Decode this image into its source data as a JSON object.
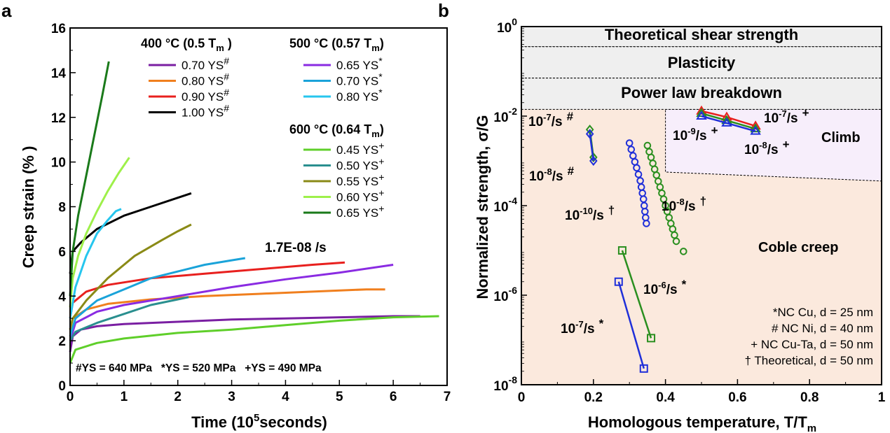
{
  "chart_data": [
    {
      "type": "line",
      "panel_label": "a",
      "xlabel": "Time (10",
      "xlabel_sup": "5",
      "xlabel_tail": "seconds)",
      "ylabel": "Creep strain (% )",
      "xlim": [
        0,
        7
      ],
      "ylim": [
        0,
        16
      ],
      "xticks": [
        0,
        1,
        2,
        3,
        4,
        5,
        6,
        7
      ],
      "yticks": [
        0,
        2,
        4,
        6,
        8,
        10,
        12,
        14,
        16
      ],
      "legend_groups": [
        {
          "title": "400 °C (0.5 T",
          "title_sub": "m",
          "title_tail": " )"
        },
        {
          "title": "500 °C (0.57 T",
          "title_sub": "m",
          "title_tail": ")"
        },
        {
          "title": "600 °C (0.64 T",
          "title_sub": "m",
          "title_tail": ")"
        }
      ],
      "series": [
        {
          "name": "0.70 YS",
          "mark": "#",
          "group": 0,
          "color": "#7a1fa2",
          "points": [
            [
              0,
              1.5
            ],
            [
              0.05,
              2.2
            ],
            [
              0.2,
              2.5
            ],
            [
              0.5,
              2.65
            ],
            [
              1,
              2.75
            ],
            [
              2,
              2.85
            ],
            [
              3,
              2.95
            ],
            [
              4,
              3.0
            ],
            [
              5,
              3.05
            ],
            [
              6,
              3.1
            ],
            [
              6.5,
              3.1
            ]
          ]
        },
        {
          "name": "0.80 YS",
          "mark": "#",
          "group": 0,
          "color": "#f07f1e",
          "points": [
            [
              0,
              2.5
            ],
            [
              0.05,
              3.0
            ],
            [
              0.3,
              3.4
            ],
            [
              0.7,
              3.65
            ],
            [
              1.5,
              3.85
            ],
            [
              2.5,
              4.0
            ],
            [
              3.5,
              4.1
            ],
            [
              4.5,
              4.2
            ],
            [
              5.5,
              4.3
            ],
            [
              5.85,
              4.3
            ]
          ]
        },
        {
          "name": "0.90 YS",
          "mark": "#",
          "group": 0,
          "color": "#e8201e",
          "points": [
            [
              0,
              3.0
            ],
            [
              0.05,
              3.7
            ],
            [
              0.3,
              4.2
            ],
            [
              0.7,
              4.5
            ],
            [
              1.5,
              4.8
            ],
            [
              2.5,
              5.0
            ],
            [
              3.5,
              5.2
            ],
            [
              4.5,
              5.4
            ],
            [
              5.1,
              5.5
            ]
          ]
        },
        {
          "name": "1.00 YS",
          "mark": "#",
          "group": 0,
          "color": "#000000",
          "points": [
            [
              0,
              5.0
            ],
            [
              0.05,
              6.0
            ],
            [
              0.2,
              6.4
            ],
            [
              0.5,
              7.0
            ],
            [
              1.0,
              7.6
            ],
            [
              1.5,
              8.0
            ],
            [
              2.0,
              8.4
            ],
            [
              2.25,
              8.6
            ]
          ]
        },
        {
          "name": "0.65 YS",
          "mark": "*",
          "group": 1,
          "color": "#8a2be2",
          "points": [
            [
              0,
              2.0
            ],
            [
              0.1,
              2.8
            ],
            [
              0.5,
              3.3
            ],
            [
              1,
              3.6
            ],
            [
              2,
              4.0
            ],
            [
              3,
              4.4
            ],
            [
              4,
              4.75
            ],
            [
              5,
              5.05
            ],
            [
              6,
              5.4
            ]
          ]
        },
        {
          "name": "0.70 YS",
          "mark": "*",
          "group": 1,
          "color": "#1aa3d9",
          "points": [
            [
              0,
              2.2
            ],
            [
              0.1,
              3.0
            ],
            [
              0.5,
              3.8
            ],
            [
              1,
              4.3
            ],
            [
              1.5,
              4.8
            ],
            [
              2,
              5.1
            ],
            [
              2.5,
              5.4
            ],
            [
              3.0,
              5.6
            ],
            [
              3.25,
              5.7
            ]
          ]
        },
        {
          "name": "0.80 YS",
          "mark": "*",
          "group": 1,
          "color": "#26c6ee",
          "points": [
            [
              0,
              3.0
            ],
            [
              0.1,
              4.4
            ],
            [
              0.3,
              5.8
            ],
            [
              0.5,
              6.8
            ],
            [
              0.7,
              7.4
            ],
            [
              0.85,
              7.8
            ],
            [
              0.95,
              7.9
            ]
          ]
        },
        {
          "name": "0.45 YS",
          "mark": "+",
          "group": 2,
          "color": "#5fcf2a",
          "points": [
            [
              0,
              1.0
            ],
            [
              0.1,
              1.6
            ],
            [
              0.5,
              1.9
            ],
            [
              1,
              2.1
            ],
            [
              2,
              2.35
            ],
            [
              3,
              2.5
            ],
            [
              4,
              2.7
            ],
            [
              5,
              2.9
            ],
            [
              6,
              3.05
            ],
            [
              6.85,
              3.1
            ]
          ]
        },
        {
          "name": "0.50 YS",
          "mark": "+",
          "group": 2,
          "color": "#2a8f8f",
          "points": [
            [
              0,
              2.0
            ],
            [
              0.1,
              2.4
            ],
            [
              0.5,
              2.8
            ],
            [
              1,
              3.2
            ],
            [
              1.5,
              3.6
            ],
            [
              2,
              3.85
            ],
            [
              2.2,
              3.95
            ]
          ]
        },
        {
          "name": "0.55 YS",
          "mark": "+",
          "group": 2,
          "color": "#8a8a16",
          "points": [
            [
              0,
              2.5
            ],
            [
              0.05,
              3.0
            ],
            [
              0.3,
              3.8
            ],
            [
              0.7,
              4.8
            ],
            [
              1.2,
              5.8
            ],
            [
              1.7,
              6.5
            ],
            [
              2.0,
              6.9
            ],
            [
              2.25,
              7.2
            ]
          ]
        },
        {
          "name": "0.60 YS",
          "mark": "+",
          "group": 2,
          "color": "#9ef04a",
          "points": [
            [
              0,
              3.5
            ],
            [
              0.05,
              4.8
            ],
            [
              0.15,
              5.8
            ],
            [
              0.3,
              6.8
            ],
            [
              0.5,
              7.8
            ],
            [
              0.7,
              8.7
            ],
            [
              0.9,
              9.5
            ],
            [
              1.1,
              10.2
            ]
          ]
        },
        {
          "name": "0.65 YS",
          "mark": "+",
          "group": 2,
          "color": "#1a7a1a",
          "points": [
            [
              0,
              4.0
            ],
            [
              0.05,
              6.0
            ],
            [
              0.15,
              7.6
            ],
            [
              0.3,
              9.4
            ],
            [
              0.45,
              11.2
            ],
            [
              0.6,
              13.0
            ],
            [
              0.72,
              14.5
            ]
          ]
        }
      ],
      "annotation": {
        "text": "1.7E-08 /s",
        "color": "#e8201e",
        "x": 3.7,
        "y": 6.0
      },
      "footnote": "#YS = 640 MPa   *YS = 520 MPa   +YS = 490 MPa"
    },
    {
      "type": "scatter",
      "panel_label": "b",
      "xlabel": "Homologous temperature, T/T",
      "xlabel_sub": "m",
      "ylabel": "Normalized strength, σ/G",
      "xlim": [
        0,
        1
      ],
      "ylim_log10": [
        -8,
        0
      ],
      "log_y": true,
      "xticks": [
        "0",
        "0.2",
        "0.4",
        "0.6",
        "0.8",
        "1"
      ],
      "yticks": [
        -8,
        -6,
        -4,
        -2,
        0
      ],
      "regions": [
        {
          "text": "Theoretical shear strength",
          "color": "#efefef"
        },
        {
          "text": "Plasticity",
          "color": "#efefef"
        },
        {
          "text": "Power law breakdown",
          "color": "#efefef"
        },
        {
          "text": "Climb",
          "color": "#f7eefb"
        },
        {
          "text": "Coble creep",
          "color": "#fbe9dd"
        }
      ],
      "datasets": [
        {
          "label": "10-7/s",
          "mark": "*",
          "color": "#1f2fd9",
          "marker": "square",
          "line": true,
          "points": [
            [
              0.27,
              2e-06
            ],
            [
              0.34,
              2.3e-08
            ]
          ]
        },
        {
          "label": "10-6/s",
          "mark": "*",
          "color": "#2a8f1f",
          "marker": "square",
          "line": true,
          "points": [
            [
              0.28,
              1e-05
            ],
            [
              0.36,
              1.1e-07
            ]
          ]
        },
        {
          "label": "10-7/s",
          "mark": "#",
          "color": "#2a8f1f",
          "marker": "diamond",
          "line": true,
          "points": [
            [
              0.19,
              0.005
            ],
            [
              0.2,
              0.0012
            ]
          ]
        },
        {
          "label": "10-8/s",
          "mark": "#",
          "color": "#1f2fd9",
          "marker": "diamond",
          "line": true,
          "points": [
            [
              0.19,
              0.004
            ],
            [
              0.2,
              0.001
            ]
          ]
        },
        {
          "label": "10-10/s",
          "mark": "†",
          "color": "#1f2fd9",
          "marker": "circle",
          "line": false,
          "points": [
            [
              0.3,
              0.0025
            ],
            [
              0.305,
              0.0018
            ],
            [
              0.31,
              0.0013
            ],
            [
              0.315,
              0.00095
            ],
            [
              0.32,
              0.0007
            ],
            [
              0.325,
              0.0005
            ],
            [
              0.33,
              0.00036
            ],
            [
              0.333,
              0.00026
            ],
            [
              0.336,
              0.00019
            ],
            [
              0.339,
              0.00014
            ],
            [
              0.341,
              0.0001
            ],
            [
              0.343,
              7.4e-05
            ],
            [
              0.345,
              5.4e-05
            ],
            [
              0.347,
              4e-05
            ]
          ]
        },
        {
          "label": "10-8/s",
          "mark": "†",
          "color": "#2a8f1f",
          "marker": "circle",
          "line": false,
          "points": [
            [
              0.35,
              0.0022
            ],
            [
              0.355,
              0.0016
            ],
            [
              0.36,
              0.0012
            ],
            [
              0.365,
              0.00088
            ],
            [
              0.37,
              0.00065
            ],
            [
              0.375,
              0.00048
            ],
            [
              0.38,
              0.00035
            ],
            [
              0.385,
              0.00026
            ],
            [
              0.39,
              0.00019
            ],
            [
              0.395,
              0.00014
            ],
            [
              0.4,
              0.0001
            ],
            [
              0.405,
              7.4e-05
            ],
            [
              0.41,
              5.4e-05
            ],
            [
              0.415,
              4e-05
            ],
            [
              0.42,
              3e-05
            ],
            [
              0.425,
              2.2e-05
            ],
            [
              0.43,
              1.6e-05
            ],
            [
              0.45,
              9.5e-06
            ]
          ]
        },
        {
          "label": "10-7/s",
          "mark": "+",
          "color": "#e8201e",
          "marker": "triangle",
          "line": true,
          "points": [
            [
              0.5,
              0.013
            ],
            [
              0.57,
              0.0095
            ],
            [
              0.65,
              0.006
            ]
          ]
        },
        {
          "label": "10-8/s",
          "mark": "+",
          "color": "#2a8f1f",
          "marker": "triangle",
          "line": true,
          "points": [
            [
              0.5,
              0.0115
            ],
            [
              0.57,
              0.008
            ],
            [
              0.65,
              0.0052
            ]
          ]
        },
        {
          "label": "10-9/s",
          "mark": "+",
          "color": "#1f2fd9",
          "marker": "triangle",
          "line": true,
          "points": [
            [
              0.5,
              0.01
            ],
            [
              0.57,
              0.007
            ],
            [
              0.65,
              0.0046
            ]
          ]
        }
      ],
      "legend_notes": [
        "*NC Cu, d = 25 nm",
        "# NC Ni, d = 40 nm",
        "+ NC Cu-Ta, d = 50 nm",
        "† Theoretical, d  = 50 nm"
      ]
    }
  ]
}
